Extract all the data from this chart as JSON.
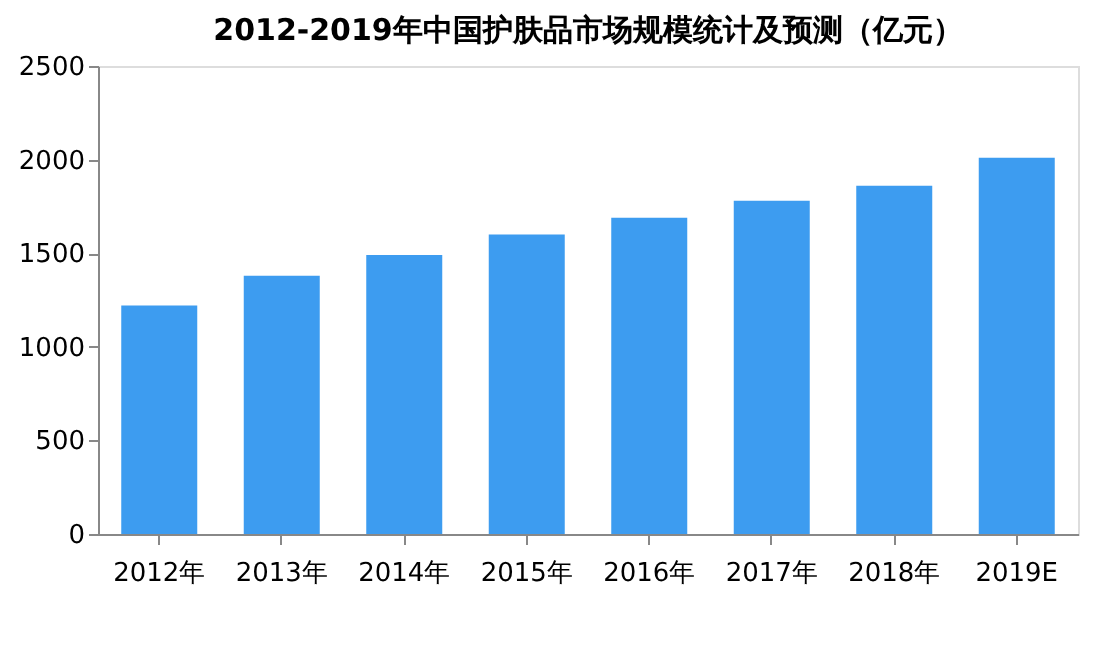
{
  "chart_data": {
    "type": "bar",
    "title": "2012-2019年中国护肤品市场规模统计及预测（亿元）",
    "categories": [
      "2012年",
      "2013年",
      "2014年",
      "2015年",
      "2016年",
      "2017年",
      "2018年",
      "2019E"
    ],
    "values": [
      1220,
      1380,
      1490,
      1600,
      1690,
      1780,
      1860,
      2010
    ],
    "color": "#3d9cf0",
    "ylim": [
      0,
      2500
    ],
    "yticks": [
      0,
      500,
      1000,
      1500,
      2000,
      2500
    ],
    "grid": false
  }
}
